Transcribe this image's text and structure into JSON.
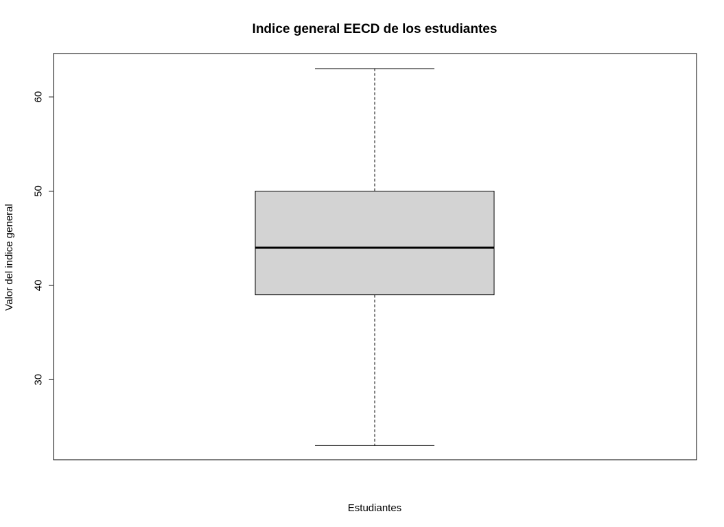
{
  "chart_data": {
    "type": "boxplot",
    "title": "Indice general EECD de los estudiantes",
    "xlabel": "Estudiantes",
    "ylabel": "Valor del indice general",
    "ylim": [
      21.5,
      64.6
    ],
    "yticks": [
      30,
      40,
      50,
      60
    ],
    "ytick_labels": [
      "30",
      "40",
      "50",
      "60"
    ],
    "box": {
      "min": 23,
      "q1": 39,
      "median": 44,
      "q3": 50,
      "max": 63
    },
    "box_fill": "#d3d3d3",
    "line_color": "#000000",
    "grid": false,
    "legend": "none"
  }
}
